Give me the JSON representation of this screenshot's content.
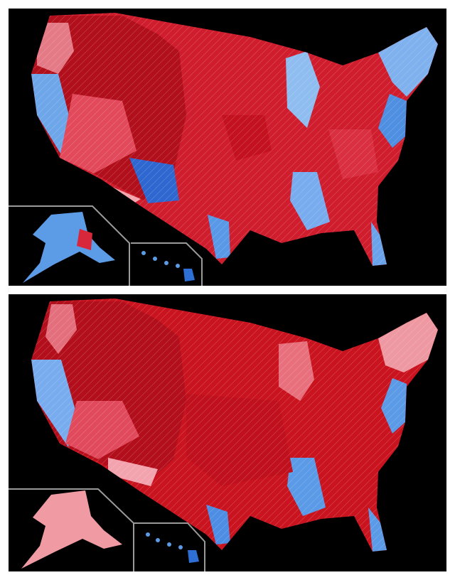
{
  "maps": [
    {
      "id": "top",
      "dominant_palette": [
        "#c5121f",
        "#d7283a",
        "#e9707c",
        "#f2a3ab",
        "#9ec9f2",
        "#5a9ee8",
        "#2e6fd6"
      ],
      "description_colors": {
        "red_strong": "#b80f1c",
        "red_mid": "#d9404e",
        "red_light": "#f0a0a8",
        "blue_light": "#a7cdf4",
        "blue_mid": "#5d9be6",
        "blue_strong": "#2563d0"
      }
    },
    {
      "id": "bottom",
      "dominant_palette": [
        "#c5121f",
        "#d7283a",
        "#e9707c",
        "#f2a3ab",
        "#9ec9f2",
        "#5a9ee8",
        "#2e6fd6"
      ],
      "description_colors": {
        "red_strong": "#b80f1c",
        "red_mid": "#d9404e",
        "red_light": "#f0a0a8",
        "blue_light": "#a7cdf4",
        "blue_mid": "#5d9be6",
        "blue_strong": "#2563d0"
      }
    }
  ],
  "background": "#000000"
}
